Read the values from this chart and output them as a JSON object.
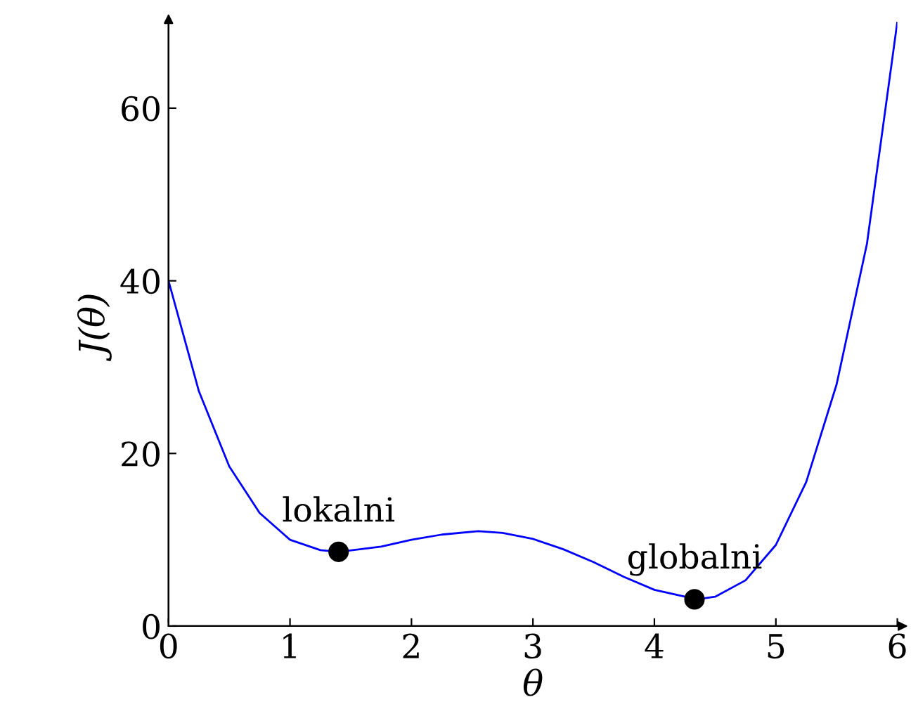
{
  "chart_data": {
    "type": "line",
    "xlabel": "θ",
    "ylabel": "J(θ)",
    "xlim": [
      0,
      6
    ],
    "ylim": [
      0,
      70
    ],
    "xticks": [
      0,
      1,
      2,
      3,
      4,
      5,
      6
    ],
    "yticks": [
      0,
      20,
      40,
      60
    ],
    "grid": false,
    "legend": false,
    "series": [
      {
        "color": "#0000ff",
        "marker": "none",
        "x": [
          0,
          0.25,
          0.5,
          0.75,
          1.0,
          1.25,
          1.4,
          1.75,
          2.0,
          2.25,
          2.55,
          2.75,
          3.0,
          3.25,
          3.5,
          3.75,
          4.0,
          4.35,
          4.5,
          4.75,
          5.0,
          5.25,
          5.5,
          5.75,
          6.0
        ],
        "values": [
          40,
          27.2,
          18.5,
          13.1,
          10.0,
          8.8,
          8.6,
          9.2,
          10.0,
          10.6,
          11.0,
          10.8,
          10.1,
          8.9,
          7.4,
          5.7,
          4.2,
          3.1,
          3.4,
          5.3,
          9.4,
          16.7,
          28.0,
          44.3,
          70
        ]
      },
      {
        "type": "scatter",
        "color": "#000000",
        "marker": "circle",
        "x": [
          1.4,
          4.33
        ],
        "values": [
          8.6,
          3.1
        ]
      }
    ],
    "annotations": [
      {
        "text": "lokalni",
        "x": 1.4,
        "y": 8.6
      },
      {
        "text": "globalni",
        "x": 4.33,
        "y": 3.1
      }
    ]
  }
}
